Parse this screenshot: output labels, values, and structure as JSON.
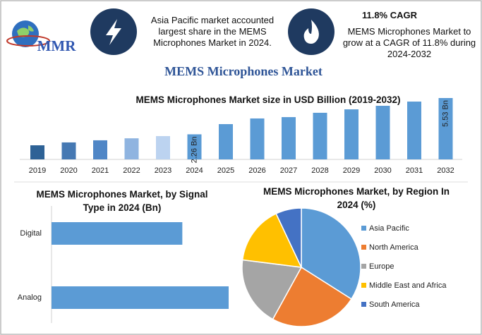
{
  "header": {
    "logo": "MMR",
    "note": "Asia Pacific market accounted largest share in the MEMS Microphones Market in 2024.",
    "cagr": "11.8% CAGR",
    "cagr_note": "MEMS Microphones Market to grow at a CAGR of 11.8% during 2024-2032"
  },
  "title": "MEMS Microphones Market",
  "chart_data": [
    {
      "type": "bar",
      "title": "MEMS Microphones Market size in USD Billion (2019-2032)",
      "categories": [
        "2019",
        "2020",
        "2021",
        "2022",
        "2023",
        "2024",
        "2025",
        "2026",
        "2027",
        "2028",
        "2029",
        "2030",
        "2031",
        "2032"
      ],
      "values": [
        1.27,
        1.53,
        1.72,
        1.9,
        2.1,
        2.26,
        3.18,
        3.69,
        3.81,
        4.2,
        4.51,
        4.83,
        5.21,
        5.53
      ],
      "value_labels": [
        null,
        null,
        null,
        null,
        null,
        "2.26 Bn",
        null,
        null,
        null,
        null,
        null,
        null,
        null,
        "5.53 Bn"
      ],
      "colors": [
        "#2e6296",
        "#4679b3",
        "#4f86c6",
        "#8fb4e0",
        "#bcd3f0",
        "#5b9bd5",
        "#5b9bd5",
        "#5b9bd5",
        "#5b9bd5",
        "#5b9bd5",
        "#5b9bd5",
        "#5b9bd5",
        "#5b9bd5",
        "#5b9bd5"
      ]
    },
    {
      "type": "barh",
      "title": "MEMS Microphones Market, by Signal Type in 2024 (Bn)",
      "categories": [
        "Digital",
        "Analog"
      ],
      "values": [
        0.96,
        1.3
      ],
      "color": "#5b9bd5"
    },
    {
      "type": "pie",
      "title": "MEMS Microphones Market, by Region In 2024 (%)",
      "categories": [
        "Asia Pacific",
        "North America",
        "Europe",
        "Middle East and Africa",
        "South America"
      ],
      "values": [
        34,
        24,
        19,
        16,
        7
      ],
      "colors": [
        "#5b9bd5",
        "#ed7d31",
        "#a5a5a5",
        "#ffc000",
        "#4472c4"
      ],
      "legend": "right"
    }
  ]
}
